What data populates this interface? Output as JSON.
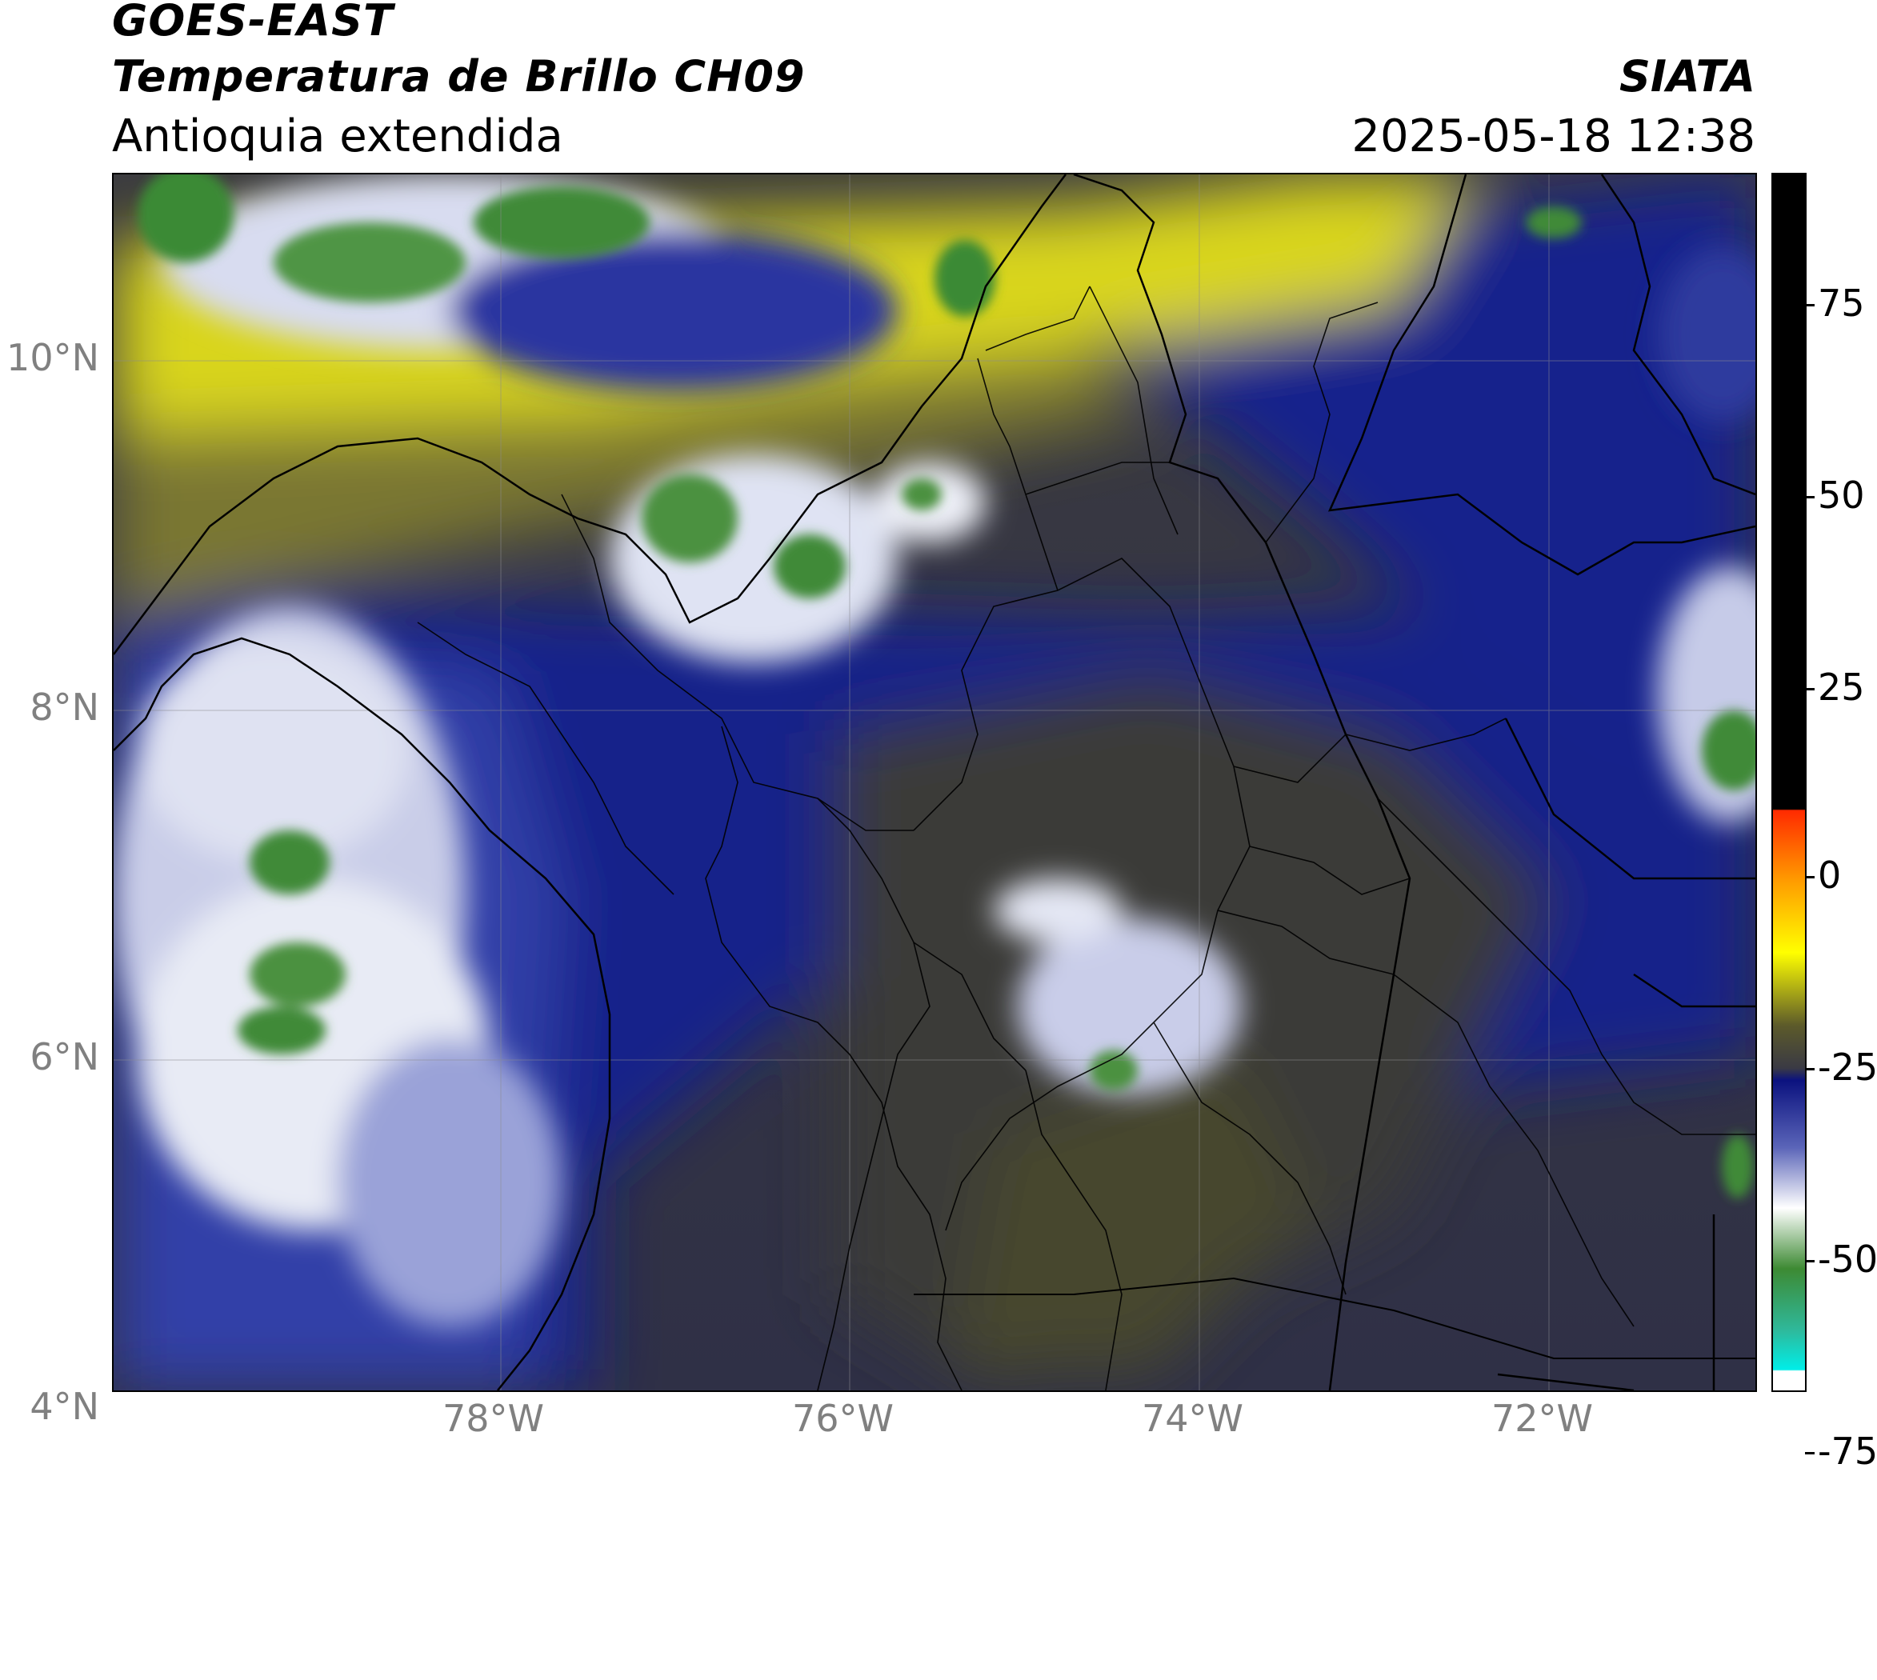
{
  "header": {
    "satellite": "GOES-EAST",
    "product": "Temperatura de Brillo CH09",
    "region": "Antioquia extendida",
    "organization": "SIATA",
    "datetime": "2025-05-18 12:38"
  },
  "map": {
    "lat_labels": [
      "10°N",
      "8°N",
      "6°N",
      "4°N"
    ],
    "lon_labels": [
      "78°W",
      "76°W",
      "74°W",
      "72°W"
    ],
    "colors": {
      "yellow": "#f4f000",
      "dark_yellow": "#6e6c26",
      "grey_olive": "#3d3d45",
      "navy": "#0f1a80",
      "blue_mid": "#2a3a9a",
      "white": "#ffffff",
      "green": "#3b8a35"
    }
  },
  "colorbar": {
    "tick_labels": [
      "75",
      "50",
      "25",
      "0",
      "-25",
      "-50",
      "-75"
    ],
    "min_value": -95,
    "max_value": 92
  }
}
